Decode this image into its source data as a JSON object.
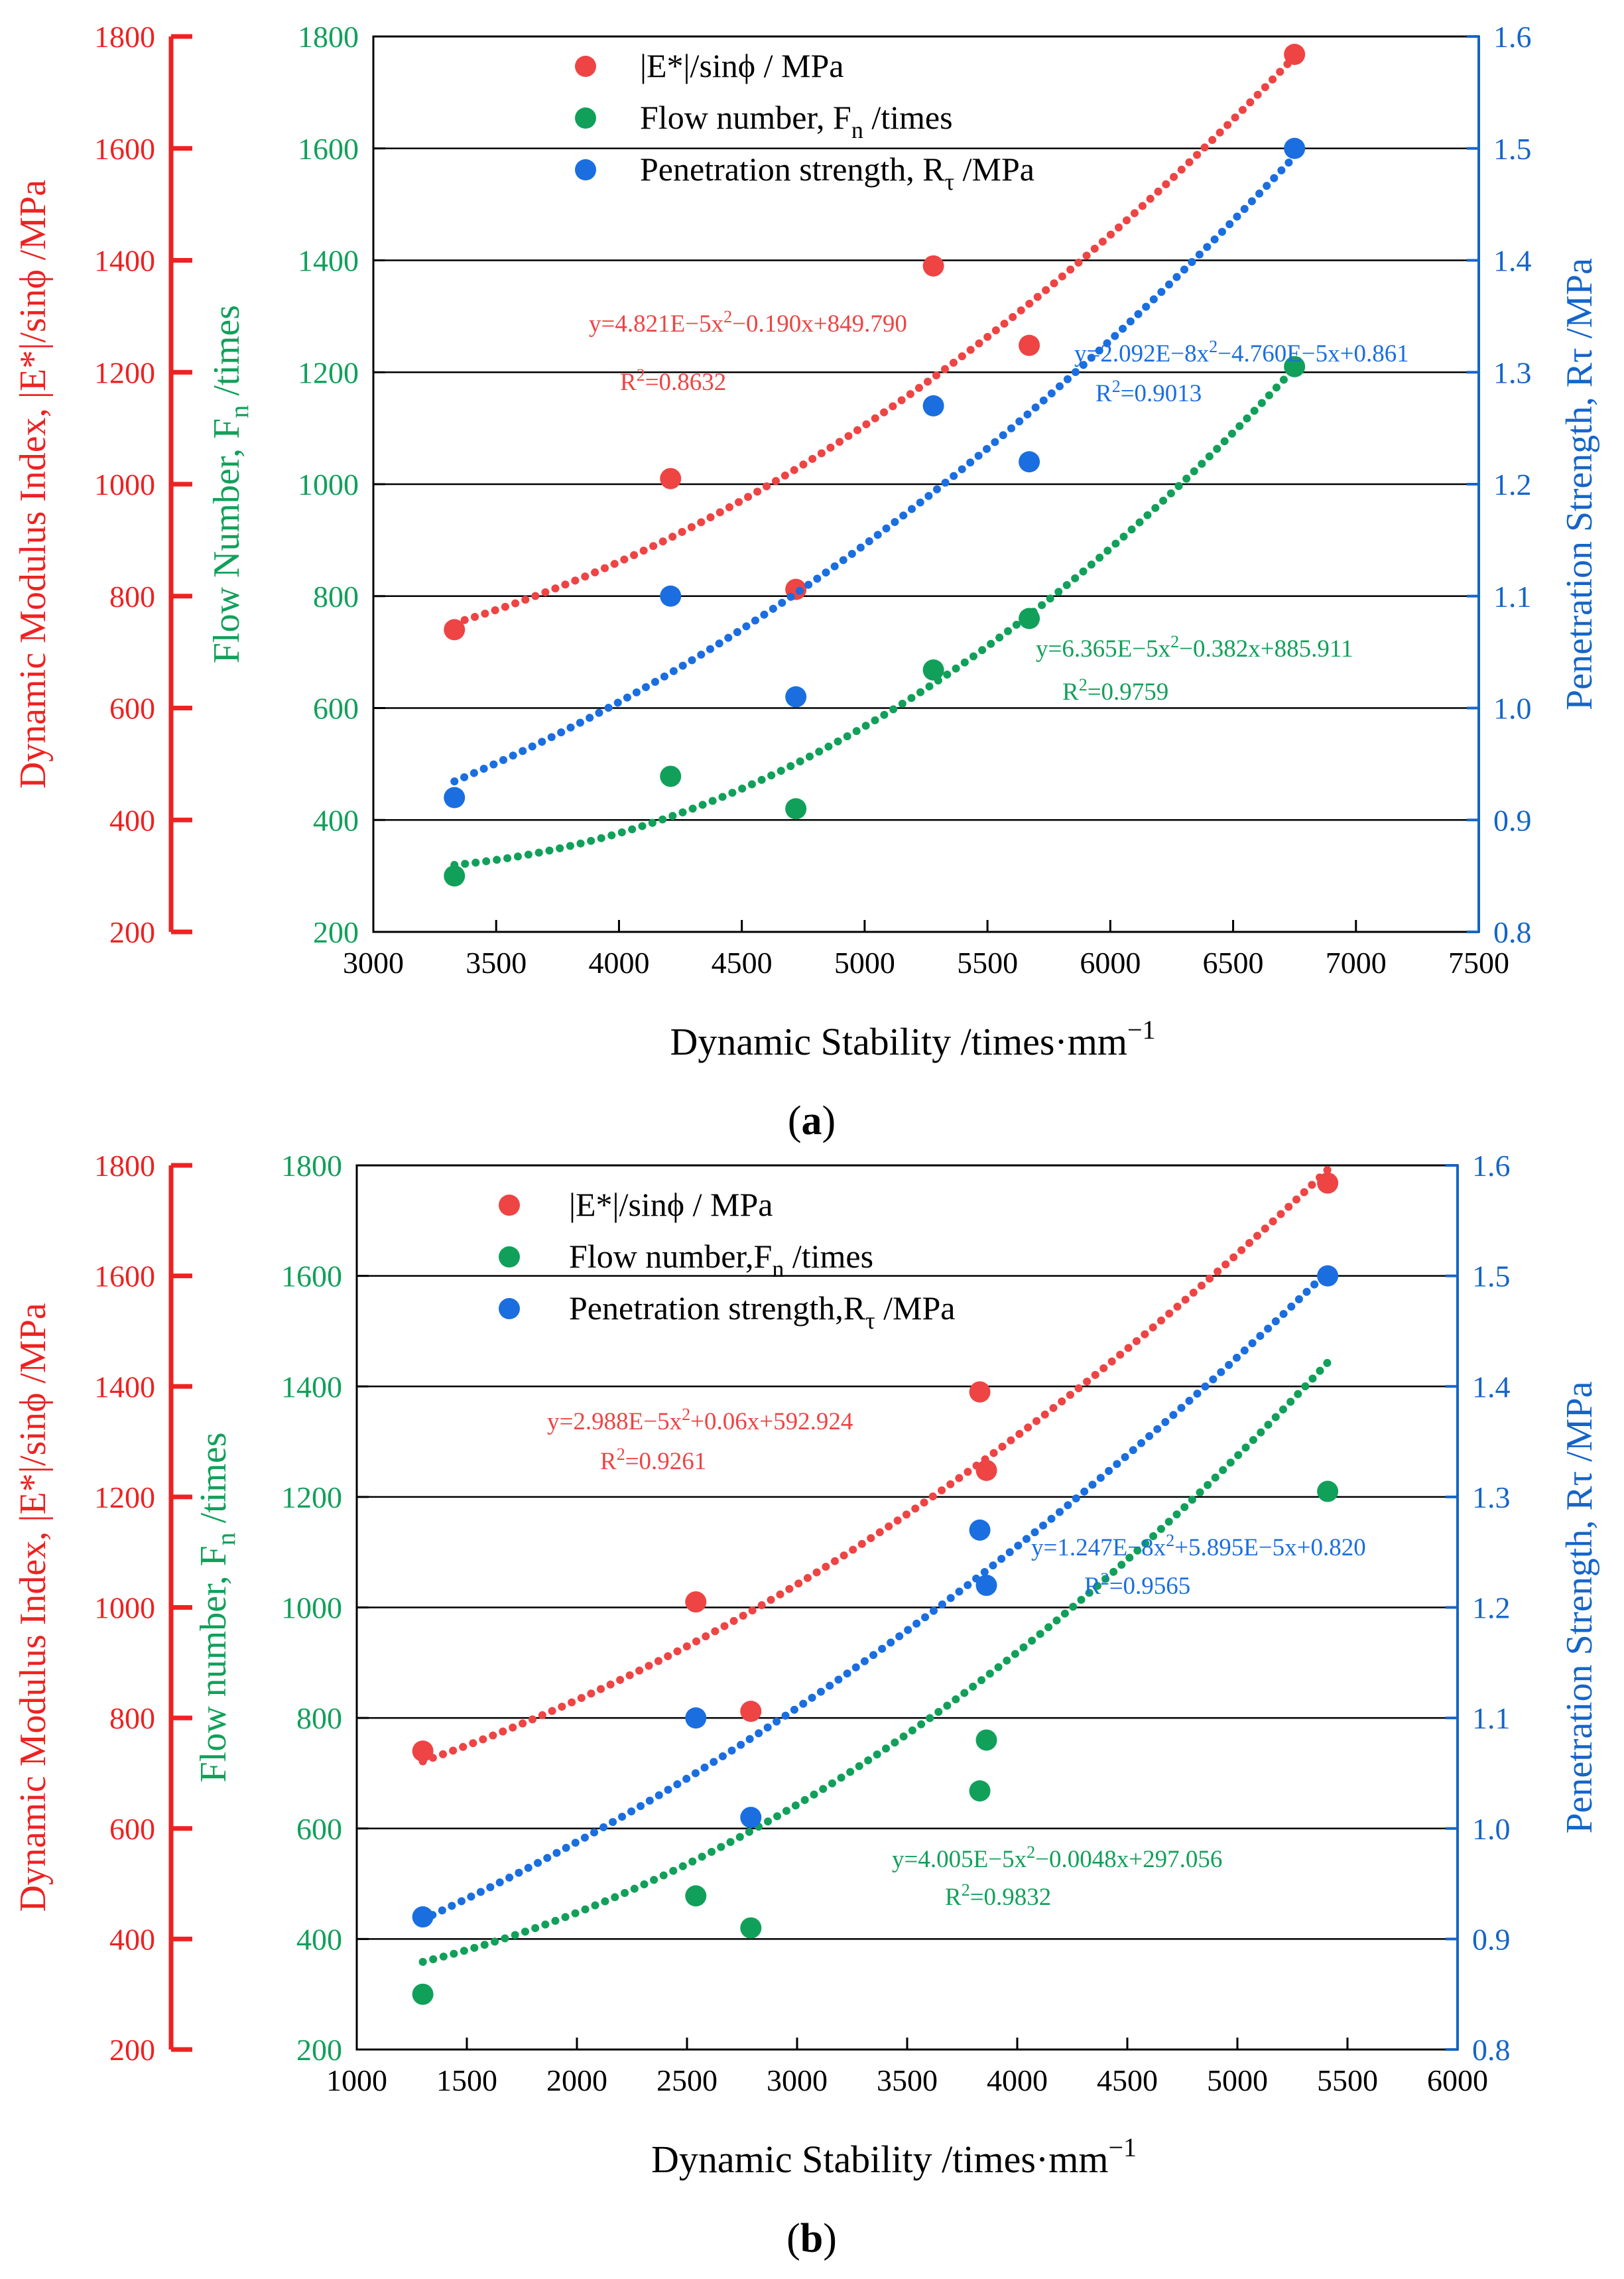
{
  "chart_data": [
    {
      "type": "scatter",
      "panel_label": "(a)",
      "panel_letter": "a",
      "xlabel": "Dynamic Stability /times·mm−1",
      "xlim": [
        3000,
        7500
      ],
      "xticks": [
        3000,
        3500,
        4000,
        4500,
        5000,
        5500,
        6000,
        6500,
        7000,
        7500
      ],
      "axes": {
        "red": {
          "label": "Dynamic Modulus Index, |E*|/sinϕ /MPa",
          "ylim": [
            200,
            1800
          ],
          "ticks": [
            200,
            400,
            600,
            800,
            1000,
            1200,
            1400,
            1600,
            1800
          ],
          "color": "#ee2222"
        },
        "green": {
          "label_main": "Flow Number, F",
          "label_sub": "n",
          "label_tail": " /times",
          "ylim": [
            200,
            1800
          ],
          "ticks": [
            200,
            400,
            600,
            800,
            1000,
            1200,
            1400,
            1600,
            1800
          ],
          "color": "#11a05a"
        },
        "blue": {
          "label": "Penetration Strength, Rτ /MPa",
          "ylim": [
            0.8,
            1.6
          ],
          "ticks": [
            "0.8",
            "0.9",
            "1.0",
            "1.1",
            "1.2",
            "1.3",
            "1.4",
            "1.5",
            "1.6"
          ],
          "color": "#1565c8"
        }
      },
      "legend": [
        {
          "label": "|E*|/sinϕ / MPa",
          "color": "#ee4444"
        },
        {
          "label": "Flow number, F",
          "sub": "n",
          "tail": " /times",
          "color": "#11a05a"
        },
        {
          "label": "Penetration strength, R",
          "sub": "τ",
          "tail": " /MPa",
          "color": "#1a6ee0"
        }
      ],
      "series": [
        {
          "name": "|E*|/sinϕ",
          "axis": "red",
          "color": "#ee4444",
          "x": [
            3330,
            4210,
            4720,
            5280,
            5670,
            6750
          ],
          "y": [
            740,
            1010,
            812,
            1390,
            1248,
            1768
          ],
          "fit": [
            4.821e-05,
            -0.19,
            849.79
          ],
          "eq": "y=4.821E−5x²−0.190x+849.790",
          "r2_label": "R²=0.8632"
        },
        {
          "name": "Flow number",
          "axis": "green",
          "color": "#11a05a",
          "x": [
            3330,
            4210,
            4720,
            5280,
            5670,
            6750
          ],
          "y": [
            300,
            478,
            420,
            668,
            760,
            1210
          ],
          "fit": [
            6.365e-05,
            -0.382,
            885.911
          ],
          "eq": "y=6.365E−5x²−0.382x+885.911",
          "r2_label": "R²=0.9759"
        },
        {
          "name": "Penetration strength",
          "axis": "blue",
          "color": "#1a6ee0",
          "x": [
            3330,
            4210,
            4720,
            5280,
            5670,
            6750
          ],
          "y": [
            0.92,
            1.1,
            1.01,
            1.27,
            1.22,
            1.5
          ],
          "fit": [
            2.092e-08,
            -4.76e-05,
            0.861
          ],
          "eq": "y=2.092E−8x²−4.760E−5x+0.861",
          "r2_label": "R²=0.9013"
        }
      ]
    },
    {
      "type": "scatter",
      "panel_label": "(b)",
      "panel_letter": "b",
      "xlabel": "Dynamic Stability /times·mm−1",
      "xlim": [
        1000,
        6000
      ],
      "xticks": [
        1000,
        1500,
        2000,
        2500,
        3000,
        3500,
        4000,
        4500,
        5000,
        5500,
        6000
      ],
      "axes": {
        "red": {
          "label": "Dynamic Modulus Index, |E*|/sinϕ /MPa",
          "ylim": [
            200,
            1800
          ],
          "ticks": [
            200,
            400,
            600,
            800,
            1000,
            1200,
            1400,
            1600,
            1800
          ],
          "color": "#ee2222"
        },
        "green": {
          "label_main": "Flow number, F",
          "label_sub": "n",
          "label_tail": " /times",
          "ylim": [
            200,
            1800
          ],
          "ticks": [
            200,
            400,
            600,
            800,
            1000,
            1200,
            1400,
            1600,
            1800
          ],
          "color": "#11a05a"
        },
        "blue": {
          "label": "Penetration Strength, Rτ /MPa",
          "ylim": [
            0.8,
            1.6
          ],
          "ticks": [
            "0.8",
            "0.9",
            "1.0",
            "1.1",
            "1.2",
            "1.3",
            "1.4",
            "1.5",
            "1.6"
          ],
          "color": "#1565c8"
        }
      },
      "legend": [
        {
          "label": "|E*|/sinϕ / MPa",
          "color": "#ee4444"
        },
        {
          "label": "Flow number,F",
          "sub": "n",
          "tail": " /times",
          "color": "#11a05a"
        },
        {
          "label": "Penetration strength,R",
          "sub": "τ",
          "tail": " /MPa",
          "color": "#1a6ee0"
        }
      ],
      "series": [
        {
          "name": "|E*|/sinϕ",
          "axis": "red",
          "color": "#ee4444",
          "x": [
            1300,
            2540,
            2790,
            3830,
            3860,
            5410
          ],
          "y": [
            740,
            1010,
            812,
            1390,
            1248,
            1768
          ],
          "fit": [
            2.988e-05,
            0.06,
            592.924
          ],
          "eq": "y=2.988E−5x²+0.06x+592.924",
          "r2_label": "R²=0.9261"
        },
        {
          "name": "Flow number",
          "axis": "green",
          "color": "#11a05a",
          "x": [
            1300,
            2540,
            2790,
            3830,
            3860,
            5410
          ],
          "y": [
            300,
            478,
            420,
            668,
            760,
            1210
          ],
          "fit": [
            4.005e-05,
            -0.0048,
            297.056
          ],
          "eq": "y=4.005E−5x²−0.0048x+297.056",
          "r2_label": "R²=0.9832"
        },
        {
          "name": "Penetration strength",
          "axis": "blue",
          "color": "#1a6ee0",
          "x": [
            1300,
            2540,
            2790,
            3830,
            3860,
            5410
          ],
          "y": [
            0.92,
            1.1,
            1.01,
            1.27,
            1.22,
            1.5
          ],
          "fit": [
            1.247e-08,
            5.895e-05,
            0.82
          ],
          "eq": "y=1.247E−8x²+5.895E−5x+0.820",
          "r2_label": "R²=0.9565"
        }
      ]
    }
  ]
}
